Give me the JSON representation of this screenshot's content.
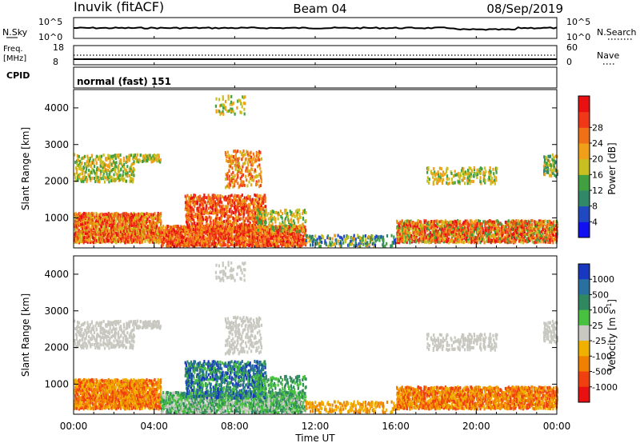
{
  "header": {
    "station": "Inuvik (fitACF)",
    "beam": "Beam 04",
    "date": "08/Sep/2019"
  },
  "top_panels": {
    "nsky_label": "N.Sky",
    "nsearch_label": "N.Search",
    "nsky_ticks": [
      "10^5",
      "10^0"
    ],
    "nsearch_ticks": [
      "10^5",
      "10^0"
    ],
    "freq_label_line1": "Freq.",
    "freq_label_line2": "[MHz]",
    "freq_ticks": [
      "18",
      "8"
    ],
    "nave_label": "Nave",
    "nave_ticks": [
      "60",
      "0"
    ],
    "cpid_label": "CPID",
    "cpid_value": "normal (fast) 151"
  },
  "chart_data": [
    {
      "type": "heatmap",
      "name": "power",
      "ylabel": "Slant Range [km]",
      "yticks": [
        1000,
        2000,
        3000,
        4000
      ],
      "ylim": [
        180,
        4500
      ],
      "xlabel": "Time UT",
      "xticks": [
        "00:00",
        "04:00",
        "08:00",
        "12:00",
        "16:00",
        "20:00",
        "00:00"
      ],
      "colorbar": {
        "label": "Power [dB]",
        "ticks": [
          "4",
          "8",
          "12",
          "16",
          "20",
          "24",
          "28"
        ],
        "colors": [
          "#1010f0",
          "#2048c0",
          "#308868",
          "#40a040",
          "#c8c020",
          "#f0a018",
          "#f07018",
          "#f03818",
          "#e81010"
        ]
      }
    },
    {
      "type": "heatmap",
      "name": "velocity",
      "ylabel": "Slant Range [km]",
      "yticks": [
        1000,
        2000,
        3000,
        4000
      ],
      "ylim": [
        180,
        4500
      ],
      "xlabel": "Time UT",
      "xticks": [
        "00:00",
        "04:00",
        "08:00",
        "12:00",
        "16:00",
        "20:00",
        "00:00"
      ],
      "colorbar": {
        "label": "Velocity [m s",
        "label_sup": "-1",
        "label_close": "]",
        "ticks": [
          "1000",
          "500",
          "100",
          "25",
          "-25",
          "-100",
          "-500",
          "-1000"
        ],
        "colors": [
          "#1838c0",
          "#2870a0",
          "#308860",
          "#48c040",
          "#c8c8c0",
          "#f0b000",
          "#f08000",
          "#f04010",
          "#e81010"
        ]
      }
    }
  ],
  "xaxis": {
    "title": "Time UT",
    "ticks": [
      "00:00",
      "04:00",
      "08:00",
      "12:00",
      "16:00",
      "20:00",
      "00:00"
    ]
  }
}
